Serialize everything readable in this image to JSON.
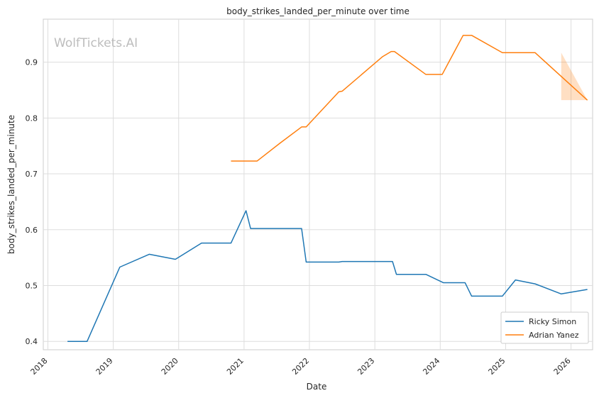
{
  "chart_data": {
    "type": "line",
    "title": "body_strikes_landed_per_minute over time",
    "xlabel": "Date",
    "ylabel": "body_strikes_landed_per_minute",
    "watermark": "WolfTickets.AI",
    "x_ticks": [
      "2018",
      "2019",
      "2020",
      "2021",
      "2022",
      "2023",
      "2024",
      "2025",
      "2026"
    ],
    "y_ticks": [
      "0.4",
      "0.5",
      "0.6",
      "0.7",
      "0.8",
      "0.9"
    ],
    "xlim": [
      2017.93,
      2026.33
    ],
    "ylim": [
      0.385,
      0.977
    ],
    "grid": true,
    "legend_position": "lower-right",
    "series": [
      {
        "name": "Ricky Simon",
        "color": "#1f77b4",
        "x": [
          2018.3,
          2018.6,
          2019.1,
          2019.55,
          2019.95,
          2020.35,
          2020.8,
          2021.03,
          2021.1,
          2021.35,
          2021.88,
          2021.95,
          2022.45,
          2022.5,
          2023.05,
          2023.27,
          2023.33,
          2023.78,
          2024.05,
          2024.38,
          2024.48,
          2024.95,
          2025.15,
          2025.45,
          2025.85,
          2026.25
        ],
        "y": [
          0.4,
          0.4,
          0.533,
          0.556,
          0.547,
          0.576,
          0.576,
          0.634,
          0.602,
          0.602,
          0.602,
          0.542,
          0.542,
          0.543,
          0.543,
          0.543,
          0.52,
          0.52,
          0.505,
          0.505,
          0.481,
          0.481,
          0.51,
          0.503,
          0.485,
          0.493
        ]
      },
      {
        "name": "Adrian Yanez",
        "color": "#ff7f0e",
        "x": [
          2020.8,
          2021.2,
          2021.55,
          2021.88,
          2021.95,
          2022.45,
          2022.5,
          2023.12,
          2023.25,
          2023.3,
          2023.78,
          2024.03,
          2024.35,
          2024.48,
          2024.95,
          2025.45,
          2026.25
        ],
        "y": [
          0.723,
          0.723,
          0.755,
          0.784,
          0.784,
          0.847,
          0.848,
          0.91,
          0.919,
          0.919,
          0.878,
          0.878,
          0.948,
          0.948,
          0.917,
          0.917,
          0.832
        ],
        "band": {
          "x": [
            2025.85,
            2026.25
          ],
          "upper": [
            0.917,
            0.832
          ],
          "lower": [
            0.832,
            0.832
          ]
        }
      }
    ]
  }
}
